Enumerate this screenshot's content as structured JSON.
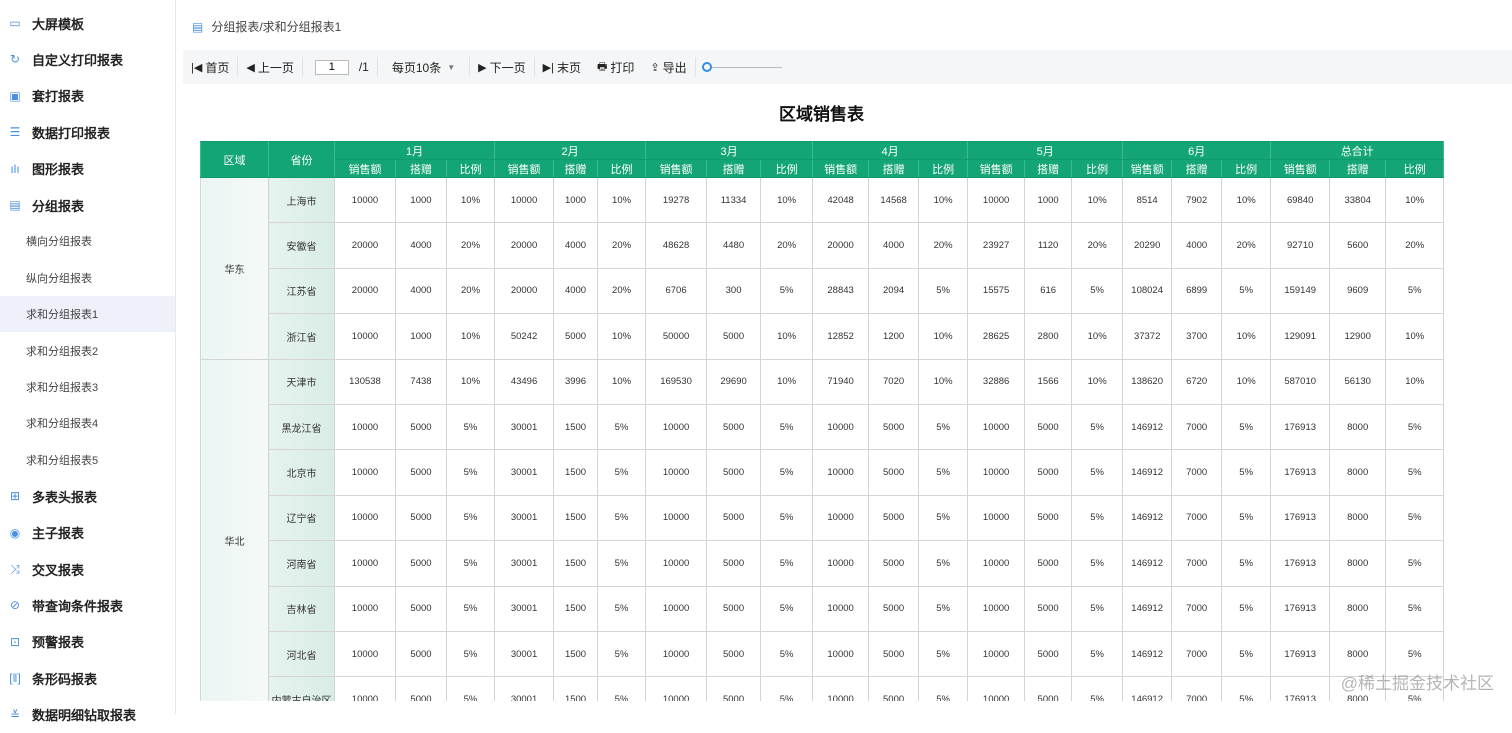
{
  "sidebar": {
    "items": [
      {
        "label": "大屏模板",
        "icon": "monitor-icon",
        "level": 1
      },
      {
        "label": "自定义打印报表",
        "icon": "refresh-icon",
        "level": 1
      },
      {
        "label": "套打报表",
        "icon": "printer-icon",
        "level": 1
      },
      {
        "label": "数据打印报表",
        "icon": "database-icon",
        "level": 1
      },
      {
        "label": "图形报表",
        "icon": "bar-chart-icon",
        "level": 1
      },
      {
        "label": "分组报表",
        "icon": "document-icon",
        "level": 1
      },
      {
        "label": "横向分组报表",
        "level": 2
      },
      {
        "label": "纵向分组报表",
        "level": 2
      },
      {
        "label": "求和分组报表1",
        "level": 2,
        "active": true
      },
      {
        "label": "求和分组报表2",
        "level": 2
      },
      {
        "label": "求和分组报表3",
        "level": 2
      },
      {
        "label": "求和分组报表4",
        "level": 2
      },
      {
        "label": "求和分组报表5",
        "level": 2
      },
      {
        "label": "多表头报表",
        "icon": "grid-icon",
        "level": 1
      },
      {
        "label": "主子报表",
        "icon": "link-icon",
        "level": 1
      },
      {
        "label": "交叉报表",
        "icon": "shuffle-icon",
        "level": 1
      },
      {
        "label": "带查询条件报表",
        "icon": "query-icon",
        "level": 1
      },
      {
        "label": "预警报表",
        "icon": "alert-icon",
        "level": 1
      },
      {
        "label": "条形码报表",
        "icon": "barcode-icon",
        "level": 1
      },
      {
        "label": "数据明细钻取报表",
        "icon": "drill-icon",
        "level": 1
      }
    ]
  },
  "breadcrumb": "分组报表/求和分组报表1",
  "toolbar": {
    "first": "首页",
    "prev": "上一页",
    "page": "1",
    "total": "/1",
    "per_page": "每页10条",
    "next": "下一页",
    "last": "末页",
    "print": "打印",
    "export": "导出",
    "zoom_level": 0
  },
  "report": {
    "title": "区域销售表",
    "header_color": "#13a575",
    "col_region": "区域",
    "col_province": "省份",
    "months": [
      "1月",
      "2月",
      "3月",
      "4月",
      "5月",
      "6月",
      "总合计"
    ],
    "sub_cols": [
      "销售额",
      "搭赠",
      "比例"
    ],
    "groups": [
      {
        "region": "华东",
        "rows": [
          {
            "province": "上海市",
            "values": [
              "10000",
              "1000",
              "10%",
              "10000",
              "1000",
              "10%",
              "19278",
              "11334",
              "10%",
              "42048",
              "14568",
              "10%",
              "10000",
              "1000",
              "10%",
              "8514",
              "7902",
              "10%",
              "69840",
              "33804",
              "10%"
            ]
          },
          {
            "province": "安徽省",
            "values": [
              "20000",
              "4000",
              "20%",
              "20000",
              "4000",
              "20%",
              "48628",
              "4480",
              "20%",
              "20000",
              "4000",
              "20%",
              "23927",
              "1120",
              "20%",
              "20290",
              "4000",
              "20%",
              "92710",
              "5600",
              "20%"
            ]
          },
          {
            "province": "江苏省",
            "values": [
              "20000",
              "4000",
              "20%",
              "20000",
              "4000",
              "20%",
              "6706",
              "300",
              "5%",
              "28843",
              "2094",
              "5%",
              "15575",
              "616",
              "5%",
              "108024",
              "6899",
              "5%",
              "159149",
              "9609",
              "5%"
            ]
          },
          {
            "province": "浙江省",
            "values": [
              "10000",
              "1000",
              "10%",
              "50242",
              "5000",
              "10%",
              "50000",
              "5000",
              "10%",
              "12852",
              "1200",
              "10%",
              "28625",
              "2800",
              "10%",
              "37372",
              "3700",
              "10%",
              "129091",
              "12900",
              "10%"
            ]
          }
        ]
      },
      {
        "region": "华北",
        "rows": [
          {
            "province": "天津市",
            "values": [
              "130538",
              "7438",
              "10%",
              "43496",
              "3996",
              "10%",
              "169530",
              "29690",
              "10%",
              "71940",
              "7020",
              "10%",
              "32886",
              "1566",
              "10%",
              "138620",
              "6720",
              "10%",
              "587010",
              "56130",
              "10%"
            ]
          },
          {
            "province": "黑龙江省",
            "values": [
              "10000",
              "5000",
              "5%",
              "30001",
              "1500",
              "5%",
              "10000",
              "5000",
              "5%",
              "10000",
              "5000",
              "5%",
              "10000",
              "5000",
              "5%",
              "146912",
              "7000",
              "5%",
              "176913",
              "8000",
              "5%"
            ]
          },
          {
            "province": "北京市",
            "values": [
              "10000",
              "5000",
              "5%",
              "30001",
              "1500",
              "5%",
              "10000",
              "5000",
              "5%",
              "10000",
              "5000",
              "5%",
              "10000",
              "5000",
              "5%",
              "146912",
              "7000",
              "5%",
              "176913",
              "8000",
              "5%"
            ]
          },
          {
            "province": "辽宁省",
            "values": [
              "10000",
              "5000",
              "5%",
              "30001",
              "1500",
              "5%",
              "10000",
              "5000",
              "5%",
              "10000",
              "5000",
              "5%",
              "10000",
              "5000",
              "5%",
              "146912",
              "7000",
              "5%",
              "176913",
              "8000",
              "5%"
            ]
          },
          {
            "province": "河南省",
            "values": [
              "10000",
              "5000",
              "5%",
              "30001",
              "1500",
              "5%",
              "10000",
              "5000",
              "5%",
              "10000",
              "5000",
              "5%",
              "10000",
              "5000",
              "5%",
              "146912",
              "7000",
              "5%",
              "176913",
              "8000",
              "5%"
            ]
          },
          {
            "province": "吉林省",
            "values": [
              "10000",
              "5000",
              "5%",
              "30001",
              "1500",
              "5%",
              "10000",
              "5000",
              "5%",
              "10000",
              "5000",
              "5%",
              "10000",
              "5000",
              "5%",
              "146912",
              "7000",
              "5%",
              "176913",
              "8000",
              "5%"
            ]
          },
          {
            "province": "河北省",
            "values": [
              "10000",
              "5000",
              "5%",
              "30001",
              "1500",
              "5%",
              "10000",
              "5000",
              "5%",
              "10000",
              "5000",
              "5%",
              "10000",
              "5000",
              "5%",
              "146912",
              "7000",
              "5%",
              "176913",
              "8000",
              "5%"
            ]
          },
          {
            "province": "内蒙古自治区",
            "values": [
              "10000",
              "5000",
              "5%",
              "30001",
              "1500",
              "5%",
              "10000",
              "5000",
              "5%",
              "10000",
              "5000",
              "5%",
              "10000",
              "5000",
              "5%",
              "146912",
              "7000",
              "5%",
              "176913",
              "8000",
              "5%"
            ]
          }
        ]
      }
    ]
  },
  "watermark": "@稀土掘金技术社区"
}
